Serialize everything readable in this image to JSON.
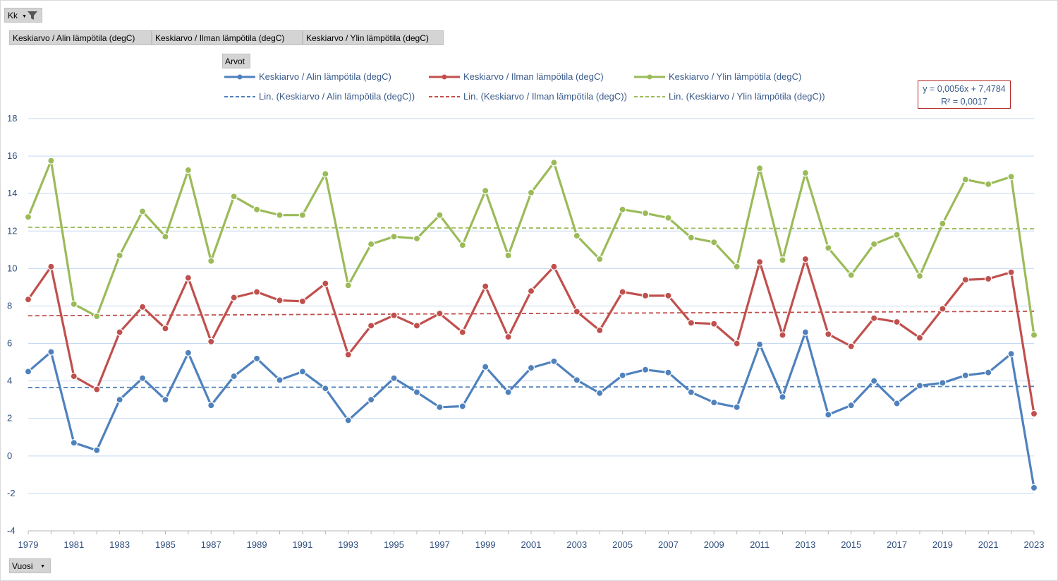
{
  "filter_field": {
    "label": "Kk",
    "icon": "filter-icon"
  },
  "value_fields": [
    "Keskiarvo  /  Alin lämpötila (degC)",
    "Keskiarvo  /  Ilman lämpötila (degC)",
    "Keskiarvo  /  Ylin lämpötila (degC)"
  ],
  "values_field": {
    "label": "Arvot"
  },
  "axis_field": {
    "label": "Vuosi"
  },
  "trendline_label": {
    "equation": "y = 0,0056x + 7,4784",
    "r2": "R² = 0,0017"
  },
  "legend": {
    "series": [
      "Keskiarvo  / Alin lämpötila (degC)",
      "Keskiarvo  / Ilman lämpötila (degC)",
      "Keskiarvo  / Ylin lämpötila (degC)"
    ],
    "trends": [
      "Lin. (Keskiarvo  / Alin lämpötila (degC))",
      "Lin. (Keskiarvo  / Ilman lämpötila (degC))",
      "Lin. (Keskiarvo  / Ylin lämpötila (degC))"
    ]
  },
  "colors": {
    "blue": "#4f81bd",
    "red": "#c0504d",
    "green": "#9bbb59",
    "grid": "#c5d9f1",
    "tick_text": "#2f4f7f"
  },
  "chart_data": {
    "type": "line",
    "x": [
      1979,
      1980,
      1981,
      1982,
      1983,
      1984,
      1985,
      1986,
      1987,
      1988,
      1989,
      1990,
      1991,
      1992,
      1993,
      1994,
      1995,
      1996,
      1997,
      1998,
      1999,
      2000,
      2001,
      2002,
      2003,
      2004,
      2005,
      2006,
      2007,
      2008,
      2009,
      2010,
      2011,
      2012,
      2013,
      2014,
      2015,
      2016,
      2017,
      2018,
      2019,
      2020,
      2021,
      2022,
      2023
    ],
    "x_tick_labels": [
      "1979",
      "1981",
      "1983",
      "1985",
      "1987",
      "1989",
      "1991",
      "1993",
      "1995",
      "1997",
      "1999",
      "2001",
      "2003",
      "2005",
      "2007",
      "2009",
      "2011",
      "2013",
      "2015",
      "2017",
      "2019",
      "2021",
      "2023"
    ],
    "ylim": [
      -4,
      18
    ],
    "y_ticks": [
      -4,
      -2,
      0,
      2,
      4,
      6,
      8,
      10,
      12,
      14,
      16,
      18
    ],
    "grid": true,
    "series": [
      {
        "name": "Keskiarvo  / Alin lämpötila (degC)",
        "color": "#4f81bd",
        "values": [
          4.5,
          5.55,
          0.7,
          0.3,
          3.0,
          4.15,
          3.0,
          5.5,
          2.7,
          4.25,
          5.2,
          4.05,
          4.5,
          3.6,
          1.9,
          3.0,
          4.15,
          3.4,
          2.6,
          2.65,
          4.75,
          3.4,
          4.7,
          5.05,
          4.05,
          3.35,
          4.3,
          4.6,
          4.45,
          3.4,
          2.85,
          2.6,
          5.95,
          3.15,
          6.6,
          2.2,
          2.7,
          4.0,
          2.8,
          3.75,
          3.9,
          4.3,
          4.45,
          5.45,
          -1.7
        ],
        "trend": [
          3.65,
          3.71
        ]
      },
      {
        "name": "Keskiarvo  / Ilman lämpötila (degC)",
        "color": "#c0504d",
        "values": [
          8.35,
          10.1,
          4.25,
          3.55,
          6.6,
          7.95,
          6.8,
          9.5,
          6.1,
          8.45,
          8.75,
          8.3,
          8.25,
          9.2,
          5.4,
          6.95,
          7.5,
          6.95,
          7.6,
          6.6,
          9.05,
          6.35,
          8.8,
          10.1,
          7.7,
          6.7,
          8.75,
          8.55,
          8.55,
          7.1,
          7.05,
          6.0,
          10.35,
          6.45,
          10.5,
          6.5,
          5.85,
          7.35,
          7.15,
          6.3,
          7.85,
          9.4,
          9.45,
          9.8,
          2.25
        ],
        "trend": [
          7.48,
          7.72
        ]
      },
      {
        "name": "Keskiarvo  / Ylin lämpötila (degC)",
        "color": "#9bbb59",
        "values": [
          12.75,
          15.75,
          8.1,
          7.45,
          10.7,
          13.05,
          11.7,
          15.25,
          10.4,
          13.85,
          13.15,
          12.85,
          12.85,
          15.05,
          9.1,
          11.3,
          11.7,
          11.6,
          12.85,
          11.25,
          14.15,
          10.7,
          14.05,
          15.65,
          11.75,
          10.5,
          13.15,
          12.95,
          12.7,
          11.65,
          11.4,
          10.1,
          15.35,
          10.45,
          15.1,
          11.1,
          9.65,
          11.3,
          11.8,
          9.6,
          12.4,
          14.75,
          14.5,
          14.9,
          6.45
        ],
        "trend": [
          12.2,
          12.12
        ]
      }
    ]
  }
}
